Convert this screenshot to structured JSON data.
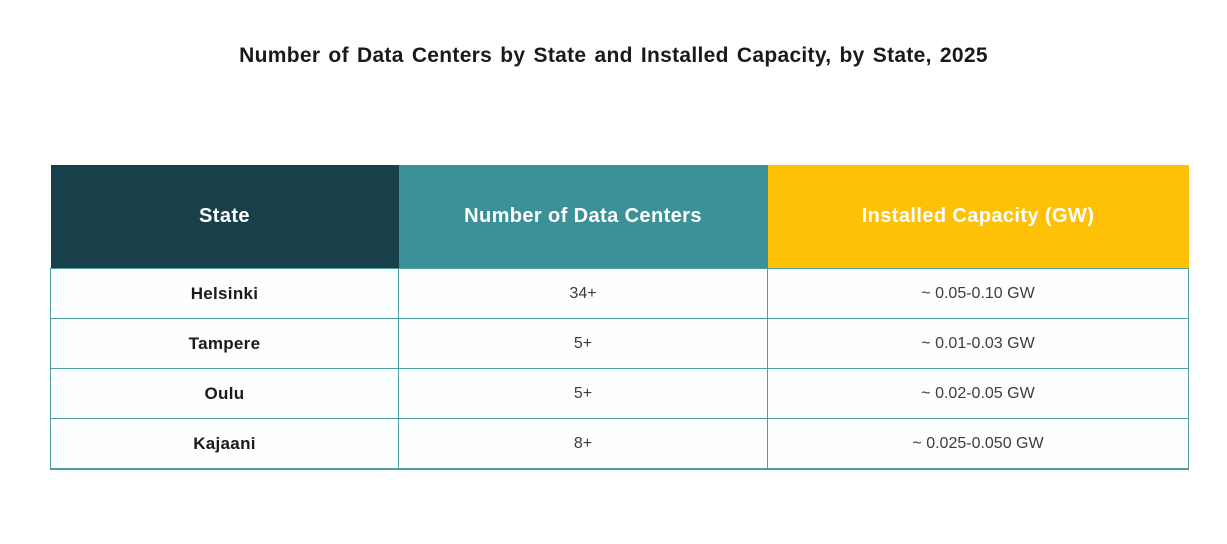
{
  "title": "Number of Data Centers by State and Installed Capacity, by State, 2025",
  "table": {
    "columns": [
      {
        "label": "State"
      },
      {
        "label": "Number of Data Centers"
      },
      {
        "label": "Installed Capacity (GW)"
      }
    ],
    "rows": [
      {
        "state": "Helsinki",
        "count": "34+",
        "capacity": "~ 0.05-0.10 GW"
      },
      {
        "state": "Tampere",
        "count": "5+",
        "capacity": "~ 0.01-0.03 GW"
      },
      {
        "state": "Oulu",
        "count": "5+",
        "capacity": "~ 0.02-0.05 GW"
      },
      {
        "state": "Kajaani",
        "count": "8+",
        "capacity": "~ 0.025-0.050 GW"
      }
    ]
  },
  "colors": {
    "header_dark": "#17404b",
    "header_teal": "#3c9199",
    "header_yellow": "#fec107",
    "grid_border": "#4f9e9e",
    "row_bg": "#fcfeff"
  },
  "chart_data": {
    "type": "table",
    "title": "Number of Data Centers by State and Installed Capacity, by State, 2025",
    "columns": [
      "State",
      "Number of Data Centers",
      "Installed Capacity (GW)"
    ],
    "rows": [
      [
        "Helsinki",
        "34+",
        "~ 0.05-0.10 GW"
      ],
      [
        "Tampere",
        "5+",
        "~ 0.01-0.03 GW"
      ],
      [
        "Oulu",
        "5+",
        "~ 0.02-0.05 GW"
      ],
      [
        "Kajaani",
        "8+",
        "~ 0.025-0.050 GW"
      ]
    ]
  }
}
